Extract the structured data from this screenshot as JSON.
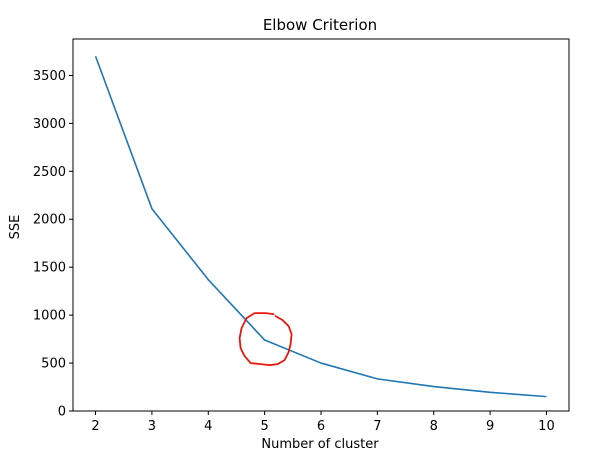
{
  "chart_data": {
    "type": "line",
    "title": "Elbow Criterion",
    "xlabel": "Number of cluster",
    "ylabel": "SSE",
    "xlim": [
      1.6,
      10.4
    ],
    "ylim": [
      0,
      3880
    ],
    "xticks": [
      2,
      3,
      4,
      5,
      6,
      7,
      8,
      9,
      10
    ],
    "yticks": [
      0,
      500,
      1000,
      1500,
      2000,
      2500,
      3000,
      3500
    ],
    "grid": false,
    "series": [
      {
        "x": [
          2,
          3,
          4,
          5,
          6,
          7,
          8,
          9,
          10
        ],
        "values": [
          3700,
          2110,
          1370,
          740,
          500,
          335,
          255,
          195,
          150
        ],
        "color": "#1f77b4"
      }
    ],
    "annotation": {
      "shape": "hand-drawn circle",
      "color": "#e8160c",
      "around_point": {
        "x": 5,
        "y": 740
      }
    }
  }
}
